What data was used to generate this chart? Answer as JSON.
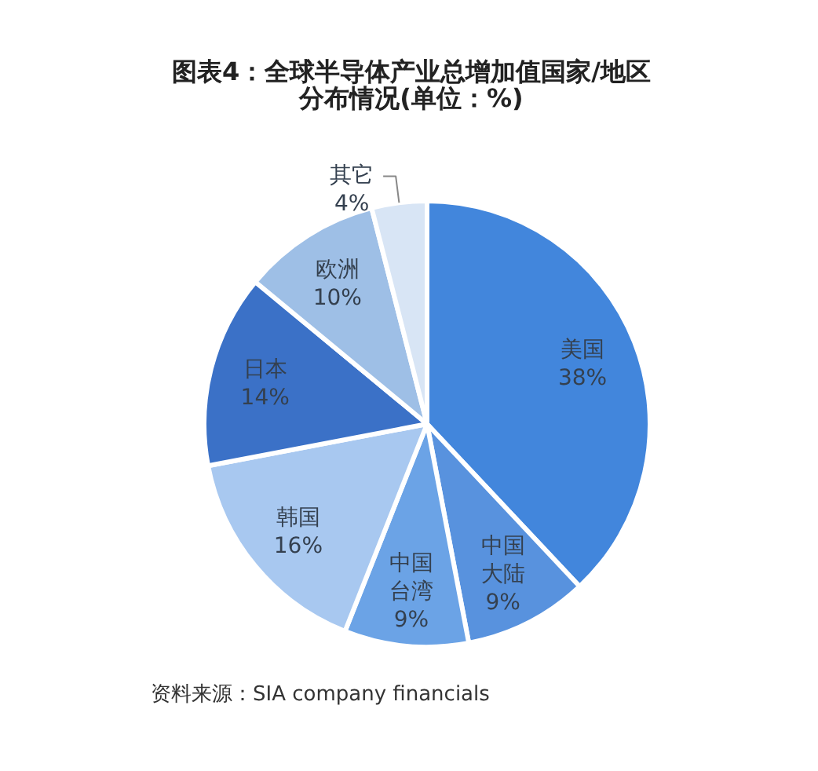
{
  "chart_data": {
    "type": "pie",
    "title": "图表4：全球半导体产业总增加值国家/地区分布情况(单位：%)",
    "categories": [
      "美国",
      "中国大陆",
      "中国台湾",
      "韩国",
      "日本",
      "欧洲",
      "其它"
    ],
    "values": [
      38,
      9,
      9,
      16,
      14,
      10,
      4
    ],
    "value_labels": [
      "38%",
      "9%",
      "9%",
      "16%",
      "14%",
      "10%",
      "4%"
    ],
    "colors": [
      "#4286dc",
      "#5892de",
      "#6ba3e6",
      "#a8c8f0",
      "#3b71c7",
      "#9ebfe6",
      "#d8e5f5"
    ],
    "annotations": [
      "资料来源：SIA company financials"
    ]
  }
}
